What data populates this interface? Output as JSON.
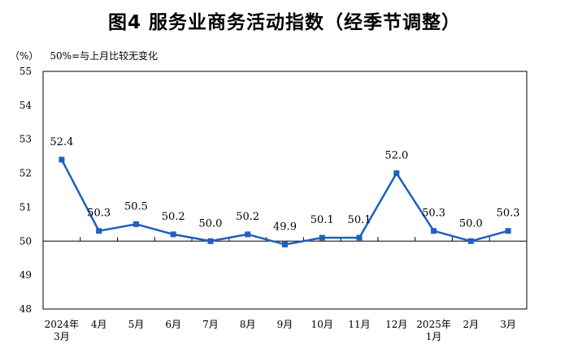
{
  "title": "图4  服务业商务活动指数（经季节调整）",
  "unit_label": "（%）",
  "note": "50%=与上月比较无变化",
  "colors": {
    "line": "#1f5fbf",
    "frame": "#000000",
    "baseline": "#000000"
  },
  "chart_data": {
    "type": "line",
    "title": "图4  服务业商务活动指数（经季节调整）",
    "xlabel": "",
    "ylabel": "",
    "categories": [
      [
        "2024年",
        "3月"
      ],
      [
        "4月"
      ],
      [
        "5月"
      ],
      [
        "6月"
      ],
      [
        "7月"
      ],
      [
        "8月"
      ],
      [
        "9月"
      ],
      [
        "10月"
      ],
      [
        "11月"
      ],
      [
        "12月"
      ],
      [
        "2025年",
        "1月"
      ],
      [
        "2月"
      ],
      [
        "3月"
      ]
    ],
    "series": [
      {
        "values": [
          52.4,
          50.3,
          50.5,
          50.2,
          50.0,
          50.2,
          49.9,
          50.1,
          50.1,
          52.0,
          50.3,
          50.0,
          50.3
        ]
      }
    ],
    "data_labels": [
      "52.4",
      "50.3",
      "50.5",
      "50.2",
      "50.0",
      "50.2",
      "49.9",
      "50.1",
      "50.1",
      "52.0",
      "50.3",
      "50.0",
      "50.3"
    ],
    "ylim": [
      48,
      55
    ],
    "yticks": [
      "48",
      "49",
      "50",
      "51",
      "52",
      "53",
      "54",
      "55"
    ],
    "reference_line": 50,
    "grid": false,
    "legend": "none"
  }
}
